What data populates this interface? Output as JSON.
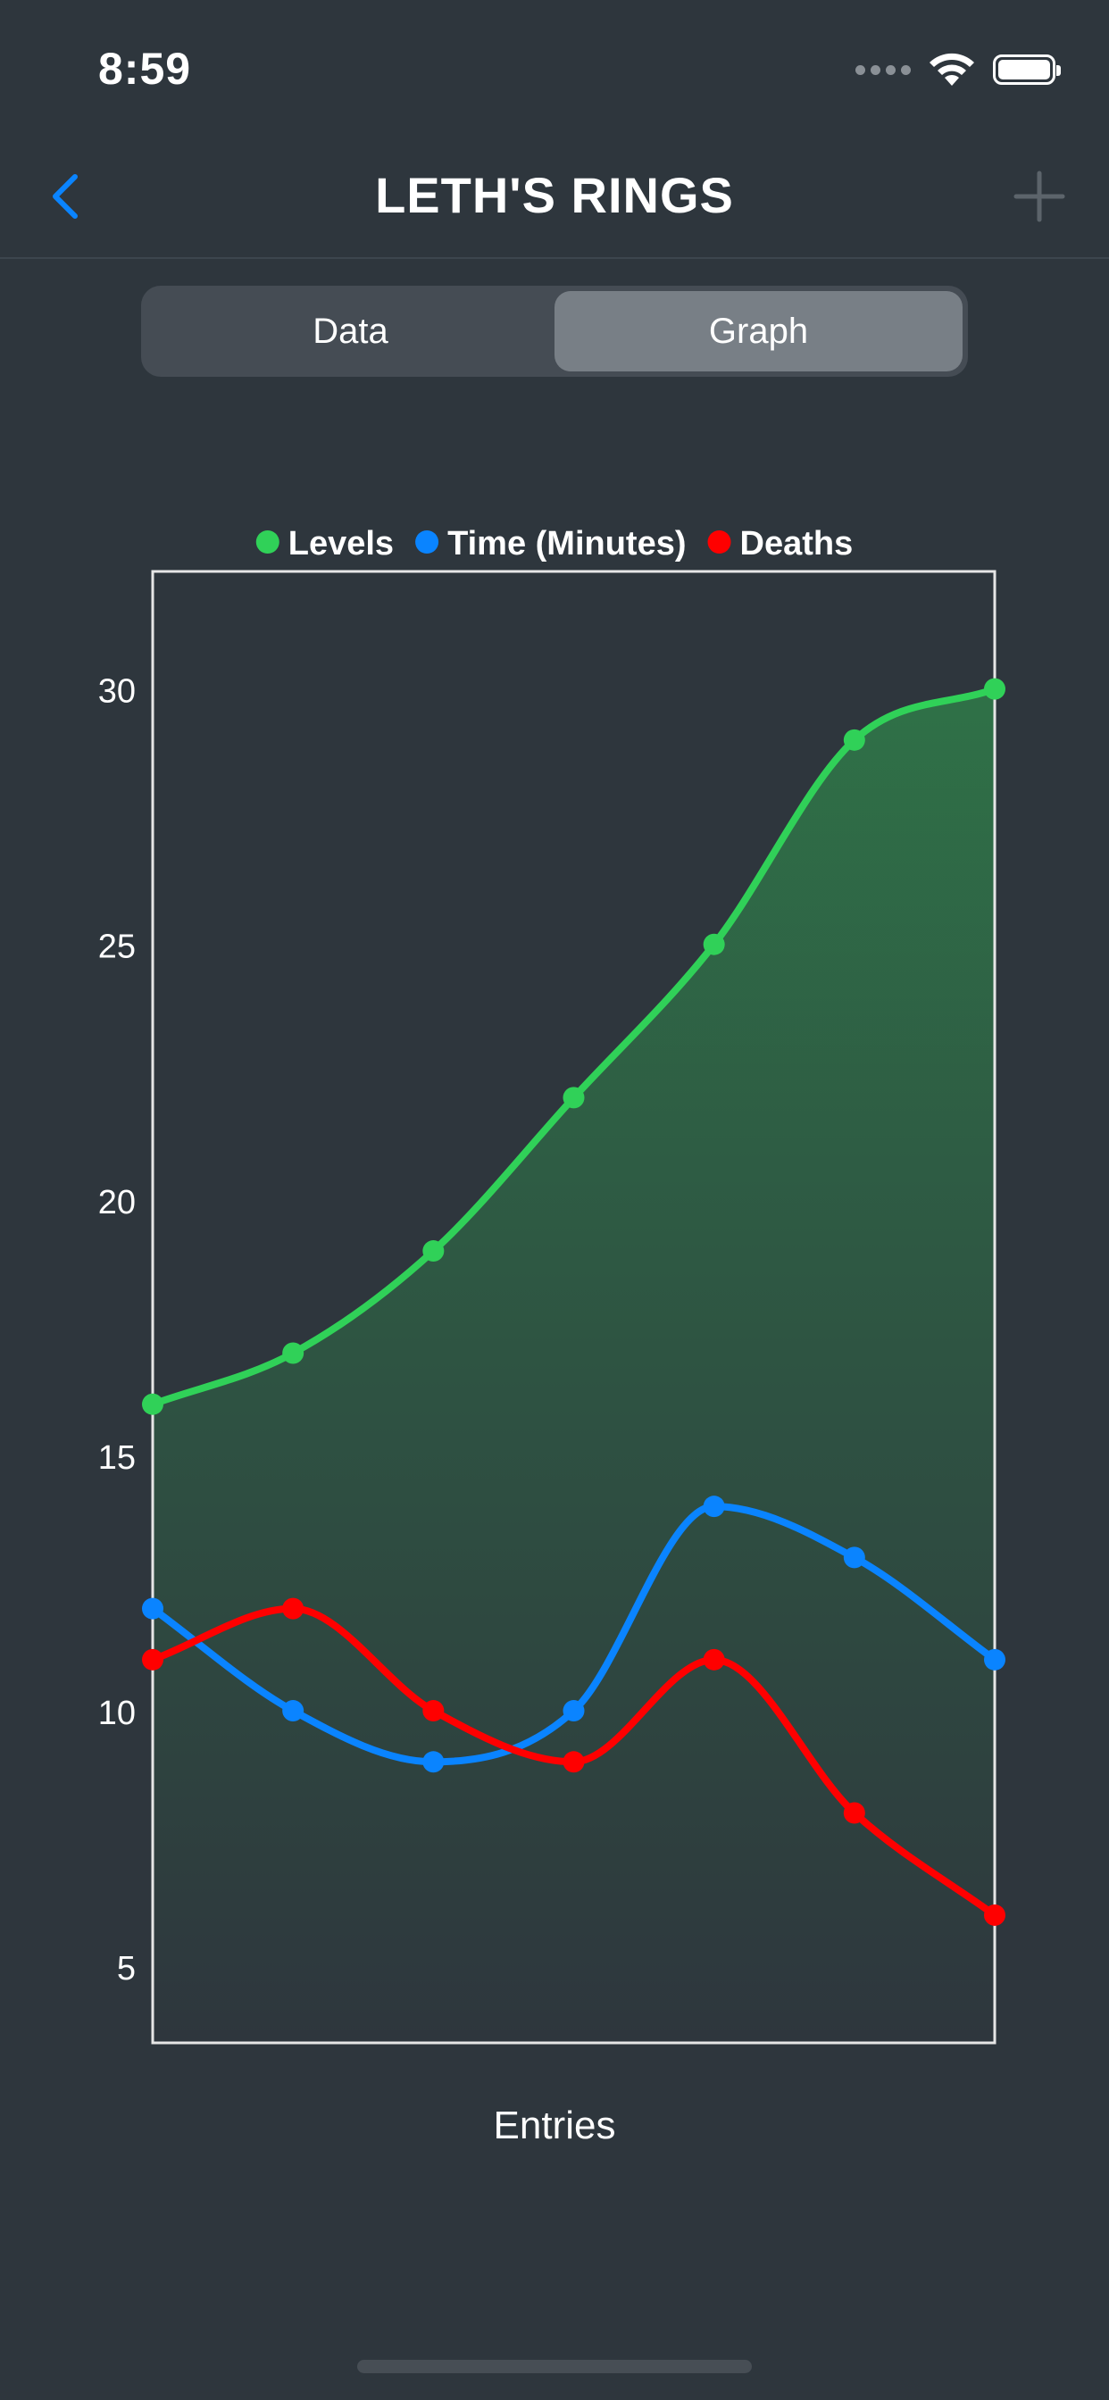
{
  "status_bar": {
    "time": "8:59"
  },
  "nav": {
    "title": "LETH'S RINGS",
    "back_icon": "chevron-left-icon",
    "add_icon": "plus-icon",
    "accent": "#0a84ff"
  },
  "segmented": {
    "items": [
      "Data",
      "Graph"
    ],
    "selected": "Graph"
  },
  "chart_data": {
    "type": "line",
    "x": [
      1,
      2,
      3,
      4,
      5,
      6,
      7
    ],
    "xlabel": "Entries",
    "ylabel": "",
    "ylim": [
      3.5,
      32.3
    ],
    "yticks": [
      5,
      10,
      15,
      20,
      25,
      30
    ],
    "legend_placement": "top",
    "grid": false,
    "series": [
      {
        "name": "Levels",
        "color": "#30d158",
        "values": [
          16,
          17,
          19,
          22,
          25,
          29,
          30
        ],
        "filled": true
      },
      {
        "name": "Time (Minutes)",
        "color": "#0a84ff",
        "values": [
          12,
          10,
          9,
          10,
          14,
          13,
          11
        ],
        "filled": false
      },
      {
        "name": "Deaths",
        "color": "#ff0000",
        "values": [
          11,
          12,
          10,
          9,
          11,
          8,
          6
        ],
        "filled": false
      }
    ]
  }
}
